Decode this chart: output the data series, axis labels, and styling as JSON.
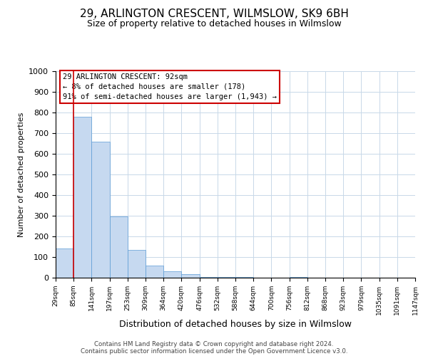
{
  "title": "29, ARLINGTON CRESCENT, WILMSLOW, SK9 6BH",
  "subtitle": "Size of property relative to detached houses in Wilmslow",
  "bar_values": [
    140,
    780,
    660,
    295,
    135,
    57,
    32,
    17,
    5,
    3,
    2,
    0,
    0,
    2,
    0,
    0,
    1,
    0,
    0,
    0
  ],
  "x_labels": [
    "29sqm",
    "85sqm",
    "141sqm",
    "197sqm",
    "253sqm",
    "309sqm",
    "364sqm",
    "420sqm",
    "476sqm",
    "532sqm",
    "588sqm",
    "644sqm",
    "700sqm",
    "756sqm",
    "812sqm",
    "868sqm",
    "923sqm",
    "979sqm",
    "1035sqm",
    "1091sqm",
    "1147sqm"
  ],
  "bar_color": "#c6d9f0",
  "bar_edge_color": "#5b9bd5",
  "ylabel": "Number of detached properties",
  "xlabel": "Distribution of detached houses by size in Wilmslow",
  "ylim": [
    0,
    1000
  ],
  "yticks": [
    0,
    100,
    200,
    300,
    400,
    500,
    600,
    700,
    800,
    900,
    1000
  ],
  "vline_color": "#cc0000",
  "annotation_title": "29 ARLINGTON CRESCENT: 92sqm",
  "annotation_line1": "← 8% of detached houses are smaller (178)",
  "annotation_line2": "91% of semi-detached houses are larger (1,943) →",
  "annotation_box_edge": "#cc0000",
  "footer_line1": "Contains HM Land Registry data © Crown copyright and database right 2024.",
  "footer_line2": "Contains public sector information licensed under the Open Government Licence v3.0.",
  "bg_color": "#ffffff",
  "grid_color": "#c8d8e8"
}
